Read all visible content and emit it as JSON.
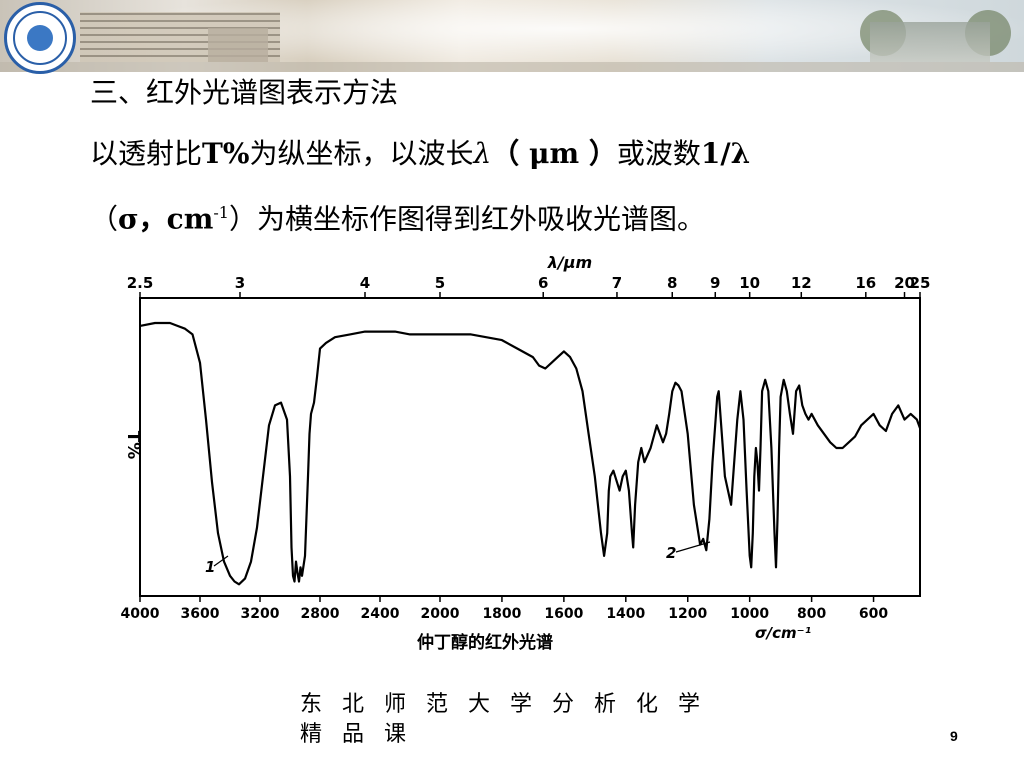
{
  "slide": {
    "heading": "三、红外光谱图表示方法",
    "line2_a": "以透射比",
    "line2_b": "T%",
    "line2_c": "为纵坐标，以波长",
    "line2_d": "λ",
    "line2_e": "（ μm ）",
    "line2_f": "或波数",
    "line2_g": "1/λ",
    "line3_a": "（",
    "line3_b": "σ，cm",
    "line3_sup": "-1",
    "line3_c": "）为横坐标作图得到红外吸收光谱图。",
    "footer_line1": "东北师范大学分析化学",
    "footer_line2": "精品课",
    "page_number": "9"
  },
  "chart_data": {
    "type": "line",
    "title": "仲丁醇的红外光谱",
    "ylabel": "T%",
    "top_axis_label": "λ/μm",
    "bottom_axis_label": "σ/cm⁻¹",
    "top_ticks": [
      "2.5",
      "3",
      "4",
      "5",
      "6",
      "7",
      "8",
      "9",
      "10",
      "12",
      "16",
      "20",
      "25"
    ],
    "top_tick_values_um": [
      2.5,
      3,
      4,
      5,
      6,
      7,
      8,
      9,
      10,
      12,
      16,
      20,
      25
    ],
    "bottom_ticks": [
      "4000",
      "3600",
      "3200",
      "2800",
      "2400",
      "2000",
      "1800",
      "1600",
      "1400",
      "1200",
      "1000",
      "800",
      "600"
    ],
    "bottom_tick_values": [
      4000,
      3600,
      3200,
      2800,
      2400,
      2000,
      1800,
      1600,
      1400,
      1200,
      1000,
      800,
      600
    ],
    "x_range_cm": [
      4000,
      450
    ],
    "y_range": [
      0,
      100
    ],
    "annotations": [
      "1",
      "2"
    ],
    "grid": false,
    "series": [
      {
        "color": "#000000",
        "x": [
          4000,
          3900,
          3800,
          3750,
          3700,
          3650,
          3600,
          3560,
          3520,
          3480,
          3440,
          3400,
          3370,
          3340,
          3300,
          3260,
          3220,
          3180,
          3140,
          3100,
          3060,
          3020,
          3000,
          2990,
          2980,
          2970,
          2960,
          2950,
          2940,
          2930,
          2920,
          2900,
          2880,
          2870,
          2860,
          2840,
          2820,
          2800,
          2760,
          2700,
          2600,
          2500,
          2400,
          2300,
          2200,
          2100,
          2000,
          1900,
          1800,
          1750,
          1700,
          1680,
          1660,
          1640,
          1620,
          1600,
          1580,
          1560,
          1540,
          1520,
          1500,
          1480,
          1470,
          1460,
          1455,
          1450,
          1440,
          1420,
          1410,
          1400,
          1390,
          1380,
          1376,
          1370,
          1360,
          1350,
          1340,
          1320,
          1300,
          1280,
          1270,
          1260,
          1250,
          1240,
          1230,
          1220,
          1200,
          1180,
          1160,
          1150,
          1140,
          1130,
          1120,
          1110,
          1105,
          1100,
          1090,
          1080,
          1060,
          1040,
          1030,
          1020,
          1010,
          1000,
          995,
          990,
          985,
          980,
          975,
          970,
          965,
          960,
          950,
          940,
          930,
          920,
          915,
          910,
          905,
          900,
          890,
          880,
          870,
          860,
          850,
          840,
          830,
          820,
          810,
          800,
          780,
          760,
          740,
          720,
          700,
          680,
          660,
          640,
          620,
          600,
          580,
          560,
          540,
          520,
          500,
          480,
          460,
          450
        ],
        "y": [
          93,
          94,
          94,
          93,
          92,
          90,
          80,
          60,
          38,
          20,
          10,
          5,
          3,
          2,
          4,
          10,
          22,
          40,
          58,
          65,
          66,
          60,
          40,
          15,
          5,
          3,
          10,
          6,
          3,
          8,
          5,
          12,
          40,
          55,
          62,
          66,
          75,
          85,
          87,
          89,
          90,
          91,
          91,
          91,
          90,
          90,
          90,
          90,
          88,
          85,
          82,
          79,
          78,
          80,
          82,
          84,
          82,
          78,
          70,
          55,
          40,
          20,
          12,
          20,
          35,
          40,
          42,
          35,
          40,
          42,
          35,
          20,
          15,
          30,
          45,
          50,
          45,
          50,
          58,
          52,
          55,
          62,
          70,
          73,
          72,
          70,
          55,
          30,
          16,
          18,
          14,
          25,
          45,
          60,
          68,
          70,
          55,
          40,
          30,
          60,
          70,
          60,
          35,
          12,
          8,
          20,
          40,
          50,
          45,
          35,
          50,
          70,
          74,
          70,
          50,
          20,
          8,
          25,
          50,
          68,
          74,
          70,
          62,
          55,
          70,
          72,
          65,
          62,
          60,
          62,
          58,
          55,
          52,
          50,
          50,
          52,
          54,
          58,
          60,
          62,
          58,
          56,
          62,
          65,
          60,
          62,
          60,
          57
        ]
      }
    ]
  }
}
